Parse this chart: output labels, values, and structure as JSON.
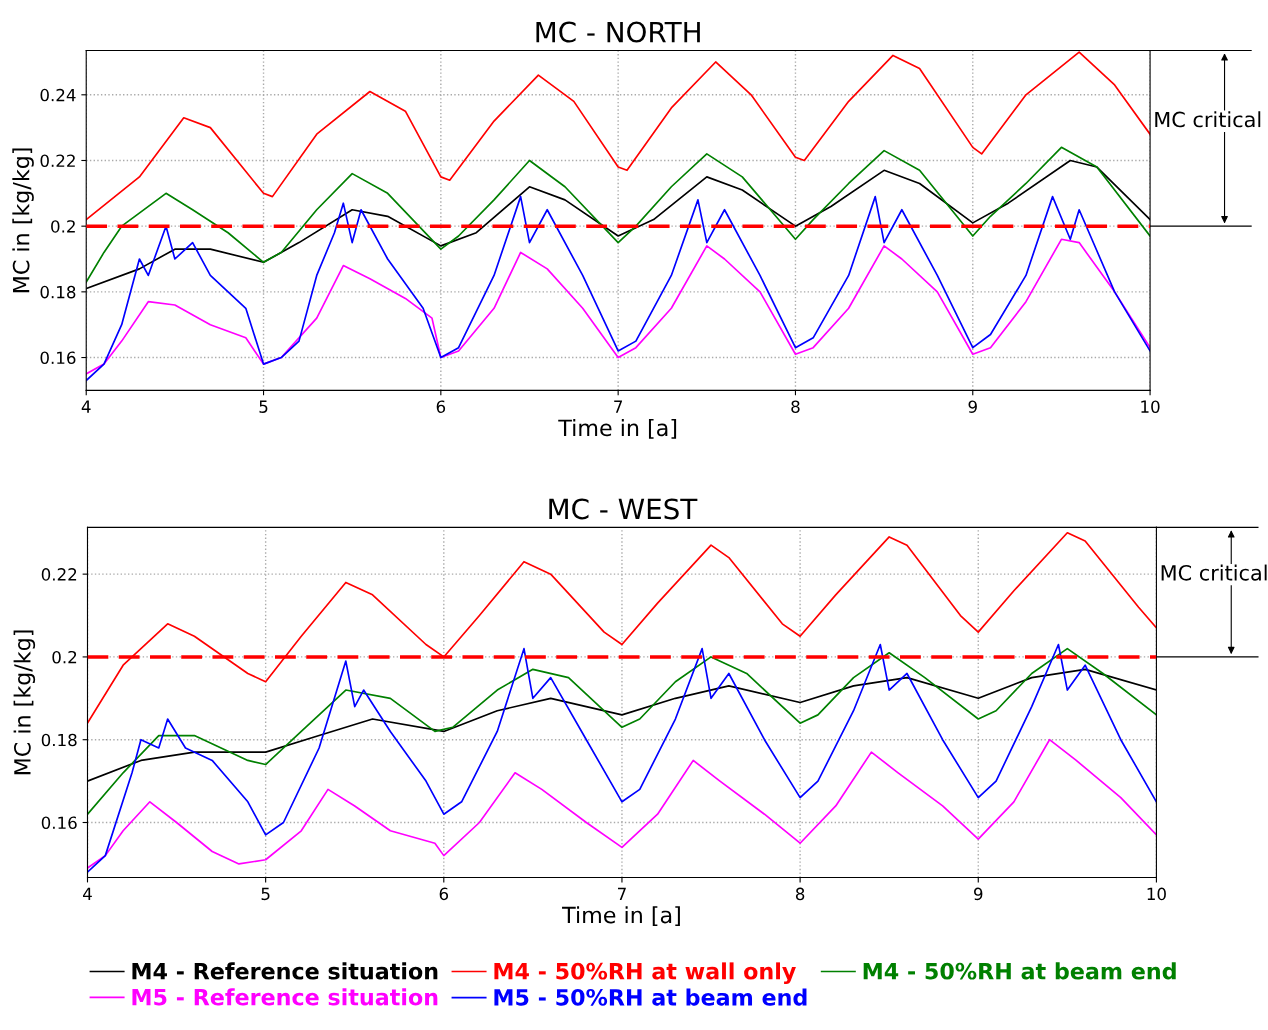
{
  "chart_data": [
    {
      "type": "line",
      "title": "MC - NORTH",
      "xlabel": "Time in [a]",
      "ylabel": "MC in [kg/kg]",
      "xlim": [
        4,
        10
      ],
      "xticks": [
        4,
        5,
        6,
        7,
        8,
        9,
        10
      ],
      "ylim": [
        0.15,
        0.2535
      ],
      "yticks": [
        0.16,
        0.18,
        0.2,
        0.22,
        0.24
      ],
      "grid": true,
      "annotations": [
        "MC critical"
      ],
      "ref_lines": [
        {
          "axis": "y",
          "value": 0.2,
          "color": "#ff0000",
          "line_style": "dashed"
        }
      ],
      "series": [
        {
          "color": "#000000",
          "x": [
            4.0,
            4.3,
            4.5,
            4.7,
            5.0,
            5.2,
            5.5,
            5.7,
            6.0,
            6.2,
            6.5,
            6.7,
            7.0,
            7.2,
            7.5,
            7.7,
            8.0,
            8.2,
            8.5,
            8.7,
            9.0,
            9.2,
            9.55,
            9.7,
            10.0
          ],
          "values": [
            0.181,
            0.187,
            0.193,
            0.193,
            0.189,
            0.195,
            0.205,
            0.203,
            0.194,
            0.198,
            0.212,
            0.208,
            0.197,
            0.202,
            0.215,
            0.211,
            0.2,
            0.206,
            0.217,
            0.213,
            0.201,
            0.207,
            0.22,
            0.218,
            0.202
          ]
        },
        {
          "color": "#ff0000",
          "x": [
            4.0,
            4.3,
            4.55,
            4.7,
            5.0,
            5.05,
            5.3,
            5.6,
            5.8,
            6.0,
            6.05,
            6.3,
            6.55,
            6.75,
            7.0,
            7.05,
            7.3,
            7.55,
            7.75,
            8.0,
            8.05,
            8.3,
            8.55,
            8.7,
            9.0,
            9.05,
            9.3,
            9.6,
            9.8,
            10.0
          ],
          "values": [
            0.202,
            0.215,
            0.233,
            0.23,
            0.21,
            0.209,
            0.228,
            0.241,
            0.235,
            0.215,
            0.214,
            0.232,
            0.246,
            0.238,
            0.218,
            0.217,
            0.236,
            0.25,
            0.24,
            0.221,
            0.22,
            0.238,
            0.252,
            0.248,
            0.224,
            0.222,
            0.24,
            0.253,
            0.243,
            0.228
          ]
        },
        {
          "color": "#008000",
          "x": [
            4.0,
            4.1,
            4.2,
            4.45,
            4.6,
            4.8,
            5.0,
            5.1,
            5.3,
            5.5,
            5.7,
            6.0,
            6.1,
            6.3,
            6.5,
            6.7,
            7.0,
            7.1,
            7.3,
            7.5,
            7.7,
            8.0,
            8.1,
            8.3,
            8.5,
            8.7,
            9.0,
            9.1,
            9.3,
            9.5,
            9.7,
            10.0
          ],
          "values": [
            0.183,
            0.192,
            0.2,
            0.21,
            0.205,
            0.198,
            0.189,
            0.192,
            0.205,
            0.216,
            0.21,
            0.193,
            0.197,
            0.208,
            0.22,
            0.212,
            0.195,
            0.2,
            0.212,
            0.222,
            0.215,
            0.196,
            0.202,
            0.213,
            0.223,
            0.217,
            0.197,
            0.203,
            0.213,
            0.224,
            0.218,
            0.197
          ]
        },
        {
          "color": "#ff00ff",
          "x": [
            4.0,
            4.1,
            4.2,
            4.35,
            4.5,
            4.7,
            4.9,
            5.0,
            5.1,
            5.3,
            5.45,
            5.6,
            5.8,
            5.95,
            6.0,
            6.1,
            6.3,
            6.45,
            6.6,
            6.8,
            7.0,
            7.1,
            7.3,
            7.5,
            7.6,
            7.8,
            8.0,
            8.1,
            8.3,
            8.5,
            8.6,
            8.8,
            9.0,
            9.1,
            9.3,
            9.5,
            9.6,
            9.8,
            10.0
          ],
          "values": [
            0.155,
            0.158,
            0.165,
            0.177,
            0.176,
            0.17,
            0.166,
            0.158,
            0.16,
            0.172,
            0.188,
            0.184,
            0.178,
            0.172,
            0.16,
            0.162,
            0.175,
            0.192,
            0.187,
            0.175,
            0.16,
            0.163,
            0.175,
            0.194,
            0.19,
            0.18,
            0.161,
            0.163,
            0.175,
            0.194,
            0.19,
            0.18,
            0.161,
            0.163,
            0.177,
            0.196,
            0.195,
            0.18,
            0.163
          ]
        },
        {
          "color": "#0000ff",
          "x": [
            4.0,
            4.1,
            4.2,
            4.3,
            4.35,
            4.45,
            4.5,
            4.6,
            4.7,
            4.9,
            5.0,
            5.1,
            5.2,
            5.3,
            5.4,
            5.45,
            5.5,
            5.55,
            5.7,
            5.9,
            6.0,
            6.1,
            6.3,
            6.45,
            6.5,
            6.6,
            6.8,
            7.0,
            7.1,
            7.3,
            7.45,
            7.5,
            7.6,
            7.8,
            8.0,
            8.1,
            8.3,
            8.45,
            8.5,
            8.6,
            8.8,
            9.0,
            9.1,
            9.3,
            9.45,
            9.55,
            9.6,
            9.8,
            10.0
          ],
          "values": [
            0.153,
            0.158,
            0.17,
            0.19,
            0.185,
            0.2,
            0.19,
            0.195,
            0.185,
            0.175,
            0.158,
            0.16,
            0.165,
            0.185,
            0.198,
            0.207,
            0.195,
            0.205,
            0.19,
            0.175,
            0.16,
            0.163,
            0.185,
            0.209,
            0.195,
            0.205,
            0.185,
            0.162,
            0.165,
            0.185,
            0.208,
            0.195,
            0.205,
            0.185,
            0.163,
            0.166,
            0.185,
            0.209,
            0.195,
            0.205,
            0.185,
            0.163,
            0.167,
            0.185,
            0.209,
            0.196,
            0.205,
            0.18,
            0.162
          ]
        }
      ]
    },
    {
      "type": "line",
      "title": "MC - WEST",
      "xlabel": "Time in [a]",
      "ylabel": "MC in [kg/kg]",
      "xlim": [
        4,
        10
      ],
      "xticks": [
        4,
        5,
        6,
        7,
        8,
        9,
        10
      ],
      "ylim": [
        0.1467,
        0.2313
      ],
      "yticks": [
        0.16,
        0.18,
        0.2,
        0.22
      ],
      "grid": true,
      "legend": "bottom",
      "annotations": [
        "MC critical"
      ],
      "ref_lines": [
        {
          "axis": "y",
          "value": 0.2,
          "color": "#ff0000",
          "line_style": "dashed"
        }
      ],
      "series": [
        {
          "name": "M4 - Reference situation",
          "color": "#000000",
          "x": [
            4.0,
            4.3,
            4.6,
            5.0,
            5.3,
            5.6,
            6.0,
            6.3,
            6.6,
            7.0,
            7.3,
            7.6,
            8.0,
            8.3,
            8.6,
            9.0,
            9.3,
            9.6,
            10.0
          ],
          "values": [
            0.17,
            0.175,
            0.177,
            0.177,
            0.181,
            0.185,
            0.182,
            0.187,
            0.19,
            0.186,
            0.19,
            0.193,
            0.189,
            0.193,
            0.195,
            0.19,
            0.195,
            0.197,
            0.192
          ]
        },
        {
          "name": "M4 - 50%RH at wall only",
          "color": "#ff0000",
          "x": [
            4.0,
            4.2,
            4.45,
            4.6,
            4.9,
            5.0,
            5.2,
            5.45,
            5.6,
            5.9,
            6.0,
            6.2,
            6.45,
            6.6,
            6.9,
            7.0,
            7.2,
            7.5,
            7.6,
            7.9,
            8.0,
            8.2,
            8.5,
            8.6,
            8.9,
            9.0,
            9.2,
            9.5,
            9.6,
            9.9,
            10.0
          ],
          "values": [
            0.184,
            0.198,
            0.208,
            0.205,
            0.196,
            0.194,
            0.205,
            0.218,
            0.215,
            0.203,
            0.2,
            0.21,
            0.223,
            0.22,
            0.206,
            0.203,
            0.213,
            0.227,
            0.224,
            0.208,
            0.205,
            0.215,
            0.229,
            0.227,
            0.21,
            0.206,
            0.216,
            0.23,
            0.228,
            0.212,
            0.207
          ]
        },
        {
          "name": "M4 - 50%RH at beam end",
          "color": "#008000",
          "x": [
            4.0,
            4.2,
            4.4,
            4.6,
            4.9,
            5.0,
            5.2,
            5.45,
            5.7,
            5.95,
            6.05,
            6.3,
            6.5,
            6.7,
            7.0,
            7.1,
            7.3,
            7.5,
            7.7,
            8.0,
            8.1,
            8.3,
            8.5,
            8.7,
            9.0,
            9.1,
            9.3,
            9.5,
            9.7,
            10.0
          ],
          "values": [
            0.162,
            0.172,
            0.181,
            0.181,
            0.175,
            0.174,
            0.182,
            0.192,
            0.19,
            0.182,
            0.183,
            0.192,
            0.197,
            0.195,
            0.183,
            0.185,
            0.194,
            0.2,
            0.196,
            0.184,
            0.186,
            0.195,
            0.201,
            0.195,
            0.185,
            0.187,
            0.196,
            0.202,
            0.196,
            0.186
          ]
        },
        {
          "name": "M5 - Reference situation",
          "color": "#ff00ff",
          "x": [
            4.0,
            4.1,
            4.2,
            4.35,
            4.5,
            4.7,
            4.85,
            5.0,
            5.2,
            5.35,
            5.5,
            5.7,
            5.95,
            6.0,
            6.2,
            6.4,
            6.55,
            6.8,
            7.0,
            7.2,
            7.4,
            7.55,
            7.8,
            8.0,
            8.2,
            8.4,
            8.55,
            8.8,
            9.0,
            9.2,
            9.4,
            9.55,
            9.8,
            10.0
          ],
          "values": [
            0.149,
            0.152,
            0.158,
            0.165,
            0.16,
            0.153,
            0.15,
            0.151,
            0.158,
            0.168,
            0.164,
            0.158,
            0.155,
            0.152,
            0.16,
            0.172,
            0.168,
            0.16,
            0.154,
            0.162,
            0.175,
            0.17,
            0.162,
            0.155,
            0.164,
            0.177,
            0.172,
            0.164,
            0.156,
            0.165,
            0.18,
            0.175,
            0.166,
            0.157
          ]
        },
        {
          "name": "M5 - 50%RH at beam end",
          "color": "#0000ff",
          "x": [
            4.0,
            4.1,
            4.25,
            4.3,
            4.4,
            4.45,
            4.55,
            4.7,
            4.9,
            5.0,
            5.1,
            5.3,
            5.45,
            5.5,
            5.55,
            5.7,
            5.9,
            6.0,
            6.1,
            6.3,
            6.45,
            6.5,
            6.6,
            6.8,
            7.0,
            7.1,
            7.3,
            7.45,
            7.5,
            7.6,
            7.8,
            8.0,
            8.1,
            8.3,
            8.45,
            8.5,
            8.6,
            8.8,
            9.0,
            9.1,
            9.3,
            9.45,
            9.5,
            9.6,
            9.8,
            10.0
          ],
          "values": [
            0.148,
            0.152,
            0.172,
            0.18,
            0.178,
            0.185,
            0.178,
            0.175,
            0.165,
            0.157,
            0.16,
            0.178,
            0.199,
            0.188,
            0.192,
            0.182,
            0.17,
            0.162,
            0.165,
            0.182,
            0.202,
            0.19,
            0.195,
            0.18,
            0.165,
            0.168,
            0.185,
            0.202,
            0.19,
            0.196,
            0.18,
            0.166,
            0.17,
            0.187,
            0.203,
            0.192,
            0.196,
            0.18,
            0.166,
            0.17,
            0.188,
            0.203,
            0.192,
            0.198,
            0.18,
            0.165
          ]
        }
      ]
    }
  ]
}
